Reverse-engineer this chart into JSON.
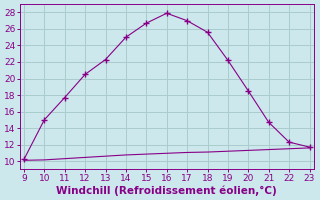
{
  "x": [
    9,
    10,
    11,
    12,
    13,
    14,
    15,
    16,
    17,
    18,
    19,
    20,
    21,
    22,
    23
  ],
  "y_upper": [
    10.2,
    15.0,
    17.7,
    20.5,
    22.3,
    25.0,
    26.7,
    27.9,
    27.0,
    25.6,
    22.2,
    18.5,
    14.7,
    12.3,
    11.7
  ],
  "y_lower": [
    10.1,
    10.15,
    10.3,
    10.45,
    10.6,
    10.75,
    10.85,
    10.95,
    11.05,
    11.1,
    11.2,
    11.3,
    11.4,
    11.5,
    11.6
  ],
  "line_color": "#880088",
  "bg_color": "#cce8ec",
  "grid_color": "#aacccc",
  "xlabel": "Windchill (Refroidissement éolien,°C)",
  "xlim": [
    9,
    23
  ],
  "ylim": [
    9,
    29
  ],
  "xticks": [
    9,
    10,
    11,
    12,
    13,
    14,
    15,
    16,
    17,
    18,
    19,
    20,
    21,
    22,
    23
  ],
  "yticks": [
    10,
    12,
    14,
    16,
    18,
    20,
    22,
    24,
    26,
    28
  ],
  "tick_fontsize": 6.5,
  "xlabel_fontsize": 7.5
}
